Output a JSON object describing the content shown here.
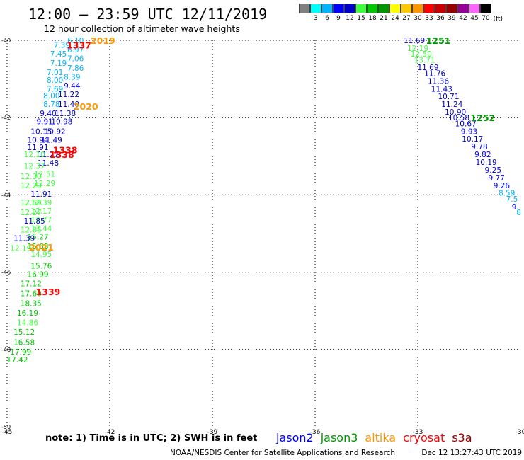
{
  "header": {
    "title": "12:00 – 23:59 UTC 12/11/2019",
    "subtitle": "12 hour collection of altimeter wave heights"
  },
  "color_scale": {
    "labels": [
      "",
      "3",
      "6",
      "9",
      "12",
      "15",
      "18",
      "21",
      "24",
      "27",
      "30",
      "33",
      "36",
      "39",
      "42",
      "45",
      "70"
    ],
    "colors": [
      "#808080",
      "#00ffff",
      "#00b4ff",
      "#0000ff",
      "#0000c8",
      "#40ff40",
      "#00c800",
      "#009600",
      "#ffff00",
      "#ffc800",
      "#ff9600",
      "#ff0000",
      "#c80000",
      "#960000",
      "#960096",
      "#ff64ff",
      "#000000"
    ],
    "unit": "(ft)"
  },
  "map": {
    "lon_range": [
      -45,
      -30
    ],
    "lat_range": [
      -50,
      -40
    ],
    "lon_ticks": [
      {
        "v": -45,
        "label": "-45"
      },
      {
        "v": -42,
        "label": "-42"
      },
      {
        "v": -39,
        "label": "-39"
      },
      {
        "v": -36,
        "label": "-36"
      },
      {
        "v": -33,
        "label": "-33"
      },
      {
        "v": -30,
        "label": "-30"
      }
    ],
    "lat_ticks": [
      {
        "v": -40,
        "label": "-40"
      },
      {
        "v": -42,
        "label": "-42"
      },
      {
        "v": -44,
        "label": "-44"
      },
      {
        "v": -46,
        "label": "-46"
      },
      {
        "v": -48,
        "label": "-48"
      },
      {
        "v": -50,
        "label": "-50"
      }
    ],
    "grid_lines_lon": [
      -42,
      -39,
      -36,
      -33
    ],
    "grid_lines_lat": [
      -42,
      -44,
      -46,
      -48
    ],
    "observations": [
      {
        "lon": -43.0,
        "lat": -40.0,
        "text": "6.10",
        "color": "#00b4ff"
      },
      {
        "lon": -43.4,
        "lat": -40.12,
        "text": "7.39",
        "color": "#00b4ff"
      },
      {
        "lon": -43.0,
        "lat": -40.24,
        "text": "6.97",
        "color": "#00b4ff"
      },
      {
        "lon": -43.5,
        "lat": -40.35,
        "text": "7.45",
        "color": "#00b4ff"
      },
      {
        "lon": -43.0,
        "lat": -40.47,
        "text": "7.06",
        "color": "#00b4ff"
      },
      {
        "lon": -43.5,
        "lat": -40.59,
        "text": "7.19",
        "color": "#00b4ff"
      },
      {
        "lon": -43.0,
        "lat": -40.71,
        "text": "7.86",
        "color": "#00b4ff"
      },
      {
        "lon": -43.6,
        "lat": -40.82,
        "text": "7.01",
        "color": "#00b4ff"
      },
      {
        "lon": -43.1,
        "lat": -40.94,
        "text": "8.39",
        "color": "#00b4ff"
      },
      {
        "lon": -43.6,
        "lat": -41.03,
        "text": "8.00",
        "color": "#00b4ff"
      },
      {
        "lon": -43.1,
        "lat": -41.17,
        "text": "9.44",
        "color": "#0000ff"
      },
      {
        "lon": -43.6,
        "lat": -41.25,
        "text": "7.69",
        "color": "#00b4ff"
      },
      {
        "lon": -43.2,
        "lat": -41.39,
        "text": "11.22",
        "color": "#0000c8"
      },
      {
        "lon": -43.7,
        "lat": -41.43,
        "text": "8.00",
        "color": "#00b4ff"
      },
      {
        "lon": -43.2,
        "lat": -41.65,
        "text": "11.40",
        "color": "#0000c8"
      },
      {
        "lon": -43.7,
        "lat": -41.65,
        "text": "8.78",
        "color": "#00b4ff"
      },
      {
        "lon": -43.3,
        "lat": -41.89,
        "text": "11.38",
        "color": "#0000c8"
      },
      {
        "lon": -43.8,
        "lat": -41.89,
        "text": "9.40",
        "color": "#0000ff"
      },
      {
        "lon": -43.4,
        "lat": -42.1,
        "text": "10.98",
        "color": "#0000c8"
      },
      {
        "lon": -43.9,
        "lat": -42.1,
        "text": "9.91",
        "color": "#0000ff"
      },
      {
        "lon": -43.6,
        "lat": -42.35,
        "text": "10.92",
        "color": "#0000c8"
      },
      {
        "lon": -44.0,
        "lat": -42.35,
        "text": "10.15",
        "color": "#0000c8"
      },
      {
        "lon": -43.7,
        "lat": -42.57,
        "text": "11.49",
        "color": "#0000c8"
      },
      {
        "lon": -44.1,
        "lat": -42.57,
        "text": "10.94",
        "color": "#0000c8"
      },
      {
        "lon": -44.1,
        "lat": -42.77,
        "text": "11.91",
        "color": "#0000c8"
      },
      {
        "lon": -43.8,
        "lat": -42.95,
        "text": "11.27",
        "color": "#0000c8"
      },
      {
        "lon": -44.2,
        "lat": -42.95,
        "text": "12.10",
        "color": "#40ff40"
      },
      {
        "lon": -43.8,
        "lat": -43.17,
        "text": "11.48",
        "color": "#0000c8"
      },
      {
        "lon": -44.2,
        "lat": -43.25,
        "text": "12.37",
        "color": "#40ff40"
      },
      {
        "lon": -43.9,
        "lat": -43.45,
        "text": "12.51",
        "color": "#40ff40"
      },
      {
        "lon": -44.3,
        "lat": -43.52,
        "text": "12.30",
        "color": "#40ff40"
      },
      {
        "lon": -43.9,
        "lat": -43.7,
        "text": "12.29",
        "color": "#40ff40"
      },
      {
        "lon": -44.3,
        "lat": -43.75,
        "text": "12.29",
        "color": "#40ff40"
      },
      {
        "lon": -44.0,
        "lat": -43.97,
        "text": "11.91",
        "color": "#0000c8"
      },
      {
        "lon": -44.3,
        "lat": -44.19,
        "text": "12.59",
        "color": "#40ff40"
      },
      {
        "lon": -44.0,
        "lat": -44.19,
        "text": "12.39",
        "color": "#40ff40"
      },
      {
        "lon": -44.0,
        "lat": -44.41,
        "text": "12.17",
        "color": "#40ff40"
      },
      {
        "lon": -44.3,
        "lat": -44.45,
        "text": "12.27",
        "color": "#40ff40"
      },
      {
        "lon": -44.0,
        "lat": -44.63,
        "text": "12.77",
        "color": "#40ff40"
      },
      {
        "lon": -44.2,
        "lat": -44.67,
        "text": "11.85",
        "color": "#0000c8"
      },
      {
        "lon": -44.0,
        "lat": -44.86,
        "text": "13.44",
        "color": "#40ff40"
      },
      {
        "lon": -44.3,
        "lat": -44.9,
        "text": "12.85",
        "color": "#40ff40"
      },
      {
        "lon": -44.1,
        "lat": -45.08,
        "text": "15.27",
        "color": "#00c800"
      },
      {
        "lon": -44.5,
        "lat": -45.12,
        "text": "11.39",
        "color": "#0000c8"
      },
      {
        "lon": -44.1,
        "lat": -45.33,
        "text": "15.68",
        "color": "#00c800"
      },
      {
        "lon": -44.6,
        "lat": -45.38,
        "text": "12.19",
        "color": "#40ff40"
      },
      {
        "lon": -44.0,
        "lat": -45.53,
        "text": "14.95",
        "color": "#40ff40"
      },
      {
        "lon": -44.0,
        "lat": -45.83,
        "text": "15.76",
        "color": "#00c800"
      },
      {
        "lon": -44.1,
        "lat": -46.05,
        "text": "16.99",
        "color": "#00c800"
      },
      {
        "lon": -44.3,
        "lat": -46.29,
        "text": "17.12",
        "color": "#00c800"
      },
      {
        "lon": -44.3,
        "lat": -46.55,
        "text": "17.60",
        "color": "#00c800"
      },
      {
        "lon": -44.3,
        "lat": -46.8,
        "text": "18.35",
        "color": "#00c800"
      },
      {
        "lon": -44.4,
        "lat": -47.05,
        "text": "16.19",
        "color": "#00c800"
      },
      {
        "lon": -44.4,
        "lat": -47.3,
        "text": "14.86",
        "color": "#40ff40"
      },
      {
        "lon": -44.5,
        "lat": -47.55,
        "text": "15.12",
        "color": "#00c800"
      },
      {
        "lon": -44.5,
        "lat": -47.81,
        "text": "16.58",
        "color": "#00c800"
      },
      {
        "lon": -44.6,
        "lat": -48.06,
        "text": "17.99",
        "color": "#00c800"
      },
      {
        "lon": -44.7,
        "lat": -48.26,
        "text": "17.42",
        "color": "#00c800"
      },
      {
        "lon": -33.1,
        "lat": -40.0,
        "text": "11.69",
        "color": "#0000c8"
      },
      {
        "lon": -33.0,
        "lat": -40.2,
        "text": "12.19",
        "color": "#40ff40"
      },
      {
        "lon": -32.9,
        "lat": -40.35,
        "text": "12.50",
        "color": "#40ff40"
      },
      {
        "lon": -32.8,
        "lat": -40.5,
        "text": "13.71",
        "color": "#40ff40"
      },
      {
        "lon": -32.7,
        "lat": -40.7,
        "text": "11.69",
        "color": "#0000c8"
      },
      {
        "lon": -32.5,
        "lat": -40.85,
        "text": "11.76",
        "color": "#0000c8"
      },
      {
        "lon": -32.4,
        "lat": -41.05,
        "text": "11.36",
        "color": "#0000c8"
      },
      {
        "lon": -32.3,
        "lat": -41.25,
        "text": "11.43",
        "color": "#0000c8"
      },
      {
        "lon": -32.1,
        "lat": -41.45,
        "text": "10.71",
        "color": "#0000c8"
      },
      {
        "lon": -32.0,
        "lat": -41.65,
        "text": "11.24",
        "color": "#0000c8"
      },
      {
        "lon": -31.9,
        "lat": -41.85,
        "text": "10.90",
        "color": "#0000c8"
      },
      {
        "lon": -31.8,
        "lat": -42.0,
        "text": "10.58",
        "color": "#0000c8"
      },
      {
        "lon": -31.6,
        "lat": -42.15,
        "text": "10.67",
        "color": "#0000c8"
      },
      {
        "lon": -31.5,
        "lat": -42.35,
        "text": "9.93",
        "color": "#0000ff"
      },
      {
        "lon": -31.4,
        "lat": -42.55,
        "text": "10.17",
        "color": "#0000c8"
      },
      {
        "lon": -31.2,
        "lat": -42.75,
        "text": "9.78",
        "color": "#0000ff"
      },
      {
        "lon": -31.1,
        "lat": -42.95,
        "text": "9.82",
        "color": "#0000ff"
      },
      {
        "lon": -31.0,
        "lat": -43.15,
        "text": "10.19",
        "color": "#0000c8"
      },
      {
        "lon": -30.8,
        "lat": -43.35,
        "text": "9.25",
        "color": "#0000ff"
      },
      {
        "lon": -30.7,
        "lat": -43.55,
        "text": "9.77",
        "color": "#0000ff"
      },
      {
        "lon": -30.55,
        "lat": -43.75,
        "text": "9.26",
        "color": "#0000ff"
      },
      {
        "lon": -30.4,
        "lat": -43.95,
        "text": "8.59",
        "color": "#00b4ff"
      },
      {
        "lon": -30.25,
        "lat": -44.1,
        "text": "7.5",
        "color": "#00b4ff"
      },
      {
        "lon": -30.15,
        "lat": -44.3,
        "text": "9.",
        "color": "#0000ff"
      },
      {
        "lon": -30.05,
        "lat": -44.45,
        "text": "8",
        "color": "#00b4ff"
      }
    ],
    "time_labels": [
      {
        "lon": -42.2,
        "lat": -40.0,
        "text": "2019",
        "color": "#ff9600"
      },
      {
        "lon": -42.9,
        "lat": -40.12,
        "text": "1337",
        "color": "#ff0000"
      },
      {
        "lon": -42.7,
        "lat": -41.7,
        "text": "2020",
        "color": "#ff9600"
      },
      {
        "lon": -43.3,
        "lat": -42.83,
        "text": "1338",
        "color": "#ff0000"
      },
      {
        "lon": -43.4,
        "lat": -42.95,
        "text": "1338",
        "color": "#ff0000"
      },
      {
        "lon": -44.0,
        "lat": -45.35,
        "text": "2021",
        "color": "#ff9600"
      },
      {
        "lon": -43.8,
        "lat": -46.5,
        "text": "1339",
        "color": "#ff0000"
      },
      {
        "lon": -32.4,
        "lat": -40.0,
        "text": "1251",
        "color": "#009600"
      },
      {
        "lon": -31.1,
        "lat": -42.0,
        "text": "1252",
        "color": "#009600"
      }
    ]
  },
  "note": "note: 1) Time is in UTC; 2) SWH is in feet",
  "satellites": [
    {
      "name": "jason2",
      "color": "#0000ff"
    },
    {
      "name": "jason3",
      "color": "#009600"
    },
    {
      "name": "altika",
      "color": "#ff9600"
    },
    {
      "name": "cryosat",
      "color": "#ff0000"
    },
    {
      "name": "s3a",
      "color": "#960000"
    }
  ],
  "footer": {
    "center": "NOAA/NESDIS Center for Satellite Applications and Research",
    "timestamp": "Dec 12 13:27:43 UTC 2019"
  }
}
